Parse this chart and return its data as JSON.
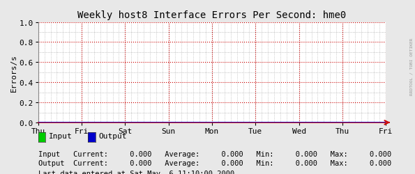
{
  "title": "Weekly host8 Interface Errors Per Second: hme0",
  "ylabel": "Errors/s",
  "ylim": [
    0.0,
    1.0
  ],
  "yticks": [
    0.0,
    0.2,
    0.4,
    0.6,
    0.8,
    1.0
  ],
  "yminor_step": 0.1,
  "x_tick_labels": [
    "Thu",
    "Fri",
    "Sat",
    "Sun",
    "Mon",
    "Tue",
    "Wed",
    "Thu",
    "Fri"
  ],
  "n_xminor": 8,
  "bg_color": "#e8e8e8",
  "plot_bg_color": "#ffffff",
  "major_grid_color": "#cc0000",
  "minor_grid_color": "#aaaaaa",
  "axis_color": "#cc0000",
  "arrow_color": "#cc0000",
  "left_spine_color": "#888888",
  "legend_input_color": "#00cc00",
  "legend_output_color": "#0000cc",
  "zero_line_color": "#0000cc",
  "watermark": "RRDTOOL / TOBI OETIKER",
  "title_fontsize": 10,
  "label_fontsize": 8,
  "tick_fontsize": 8,
  "stats_fontsize": 7.5,
  "legend_fontsize": 8
}
